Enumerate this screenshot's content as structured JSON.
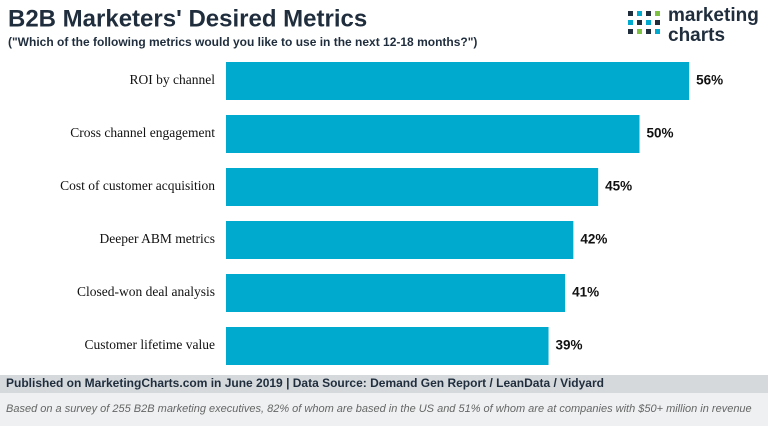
{
  "chart_data": {
    "type": "bar",
    "orientation": "horizontal",
    "title": "B2B Marketers' Desired Metrics",
    "subtitle": "(\"Which of the following metrics would you like to use in the next 12-18 months?\")",
    "categories": [
      "ROI by channel",
      "Cross channel engagement",
      "Cost of customer acquisition",
      "Deeper ABM metrics",
      "Closed-won deal analysis",
      "Customer lifetime value"
    ],
    "values": [
      56,
      50,
      45,
      42,
      41,
      39
    ],
    "value_labels": [
      "56%",
      "50%",
      "45%",
      "42%",
      "41%",
      "39%"
    ],
    "color": "#00a9ce"
  },
  "logo": {
    "line1": "marketing",
    "line2": "charts"
  },
  "footer": {
    "source": "Published on MarketingCharts.com in June 2019 | Data Source: Demand Gen Report / LeanData / Vidyard",
    "note": "Based on a survey of 255 B2B marketing executives, 82% of whom are based in the US and 51% of whom are at companies with $50+ million in revenue"
  }
}
